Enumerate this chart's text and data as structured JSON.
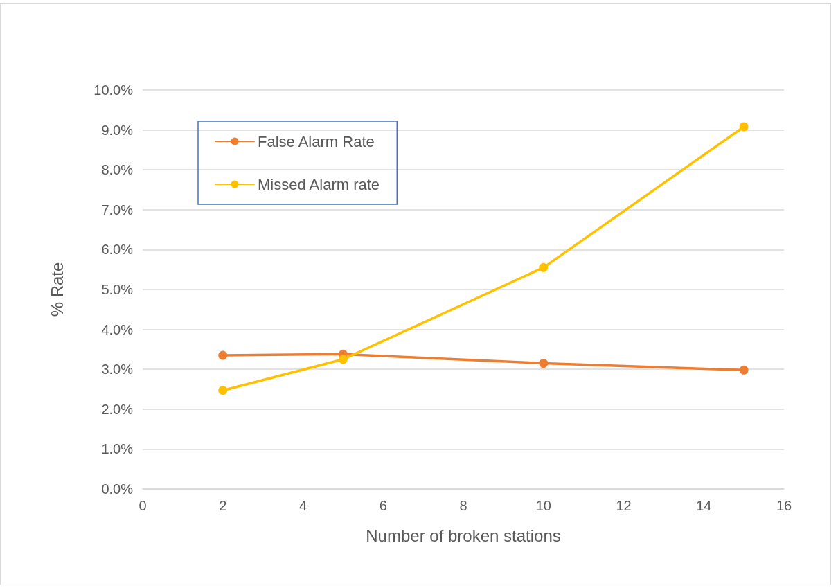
{
  "chart_data": {
    "type": "line",
    "xlabel": "Number of broken stations",
    "ylabel": "% Rate",
    "x": [
      2,
      5,
      10,
      15
    ],
    "series": [
      {
        "name": "False Alarm Rate",
        "color": "#ed7d31",
        "values": [
          3.35,
          3.38,
          3.15,
          2.98
        ]
      },
      {
        "name": "Missed Alarm rate",
        "color": "#ffc000",
        "values": [
          2.47,
          3.25,
          5.55,
          9.08
        ]
      }
    ],
    "xlim": [
      0,
      16
    ],
    "xticks": [
      0,
      2,
      4,
      6,
      8,
      10,
      12,
      14,
      16
    ],
    "ylim": [
      0,
      10
    ],
    "yticks": [
      {
        "value": 0,
        "label": "0.0%"
      },
      {
        "value": 1,
        "label": "1.0%"
      },
      {
        "value": 2,
        "label": "2.0%"
      },
      {
        "value": 3,
        "label": "3.0%"
      },
      {
        "value": 4,
        "label": "4.0%"
      },
      {
        "value": 5,
        "label": "5.0%"
      },
      {
        "value": 6,
        "label": "6.0%"
      },
      {
        "value": 7,
        "label": "7.0%"
      },
      {
        "value": 8,
        "label": "8.0%"
      },
      {
        "value": 9,
        "label": "9.0%"
      },
      {
        "value": 10,
        "label": "10.0%"
      }
    ],
    "grid": "y",
    "legend": "top left",
    "marker": "circle",
    "line_style": "solid"
  }
}
